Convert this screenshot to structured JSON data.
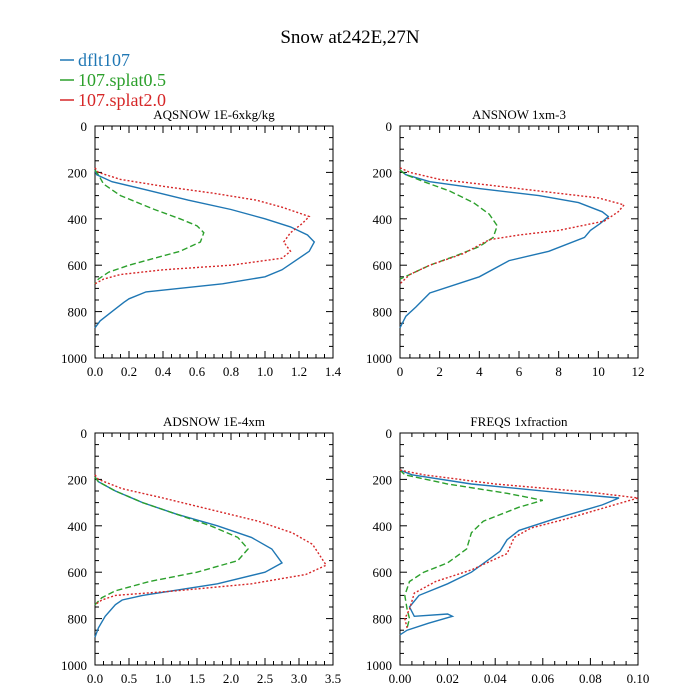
{
  "figure_title": "Snow at242E,27N",
  "legend": [
    {
      "label": "dflt107",
      "color": "#1f77b4"
    },
    {
      "label": "107.splat0.5",
      "color": "#2ca02c"
    },
    {
      "label": "107.splat2.0",
      "color": "#d62728"
    }
  ],
  "chart_data": [
    {
      "type": "line",
      "title": "AQSNOW  1E-6xkg/kg",
      "xlim": [
        0,
        1.4
      ],
      "ylim": [
        1000,
        0
      ],
      "xticks": [
        "0.0",
        "0.2",
        "0.4",
        "0.6",
        "0.8",
        "1.0",
        "1.2",
        "1.4"
      ],
      "xtick_values": [
        0,
        0.2,
        0.4,
        0.6,
        0.8,
        1.0,
        1.2,
        1.4
      ],
      "yticks": [
        "0",
        "200",
        "400",
        "600",
        "800",
        "1000"
      ],
      "ytick_values": [
        0,
        200,
        400,
        600,
        800,
        1000
      ],
      "series": [
        {
          "name": "dflt107",
          "style": "solid",
          "x": [
            0,
            0.01,
            0.1,
            0.3,
            0.55,
            0.8,
            1.0,
            1.15,
            1.25,
            1.29,
            1.26,
            1.18,
            1.1,
            1.0,
            0.75,
            0.3,
            0.2,
            0.17,
            0.1,
            0.03,
            0
          ],
          "y": [
            190,
            210,
            240,
            275,
            320,
            360,
            400,
            435,
            470,
            500,
            540,
            580,
            620,
            650,
            680,
            715,
            745,
            760,
            800,
            840,
            870
          ]
        },
        {
          "name": "107.splat0.5",
          "style": "dashed",
          "x": [
            0,
            0.02,
            0.05,
            0.15,
            0.35,
            0.5,
            0.6,
            0.64,
            0.62,
            0.5,
            0.35,
            0.2,
            0.08,
            0.02,
            0
          ],
          "y": [
            190,
            210,
            250,
            300,
            360,
            400,
            430,
            460,
            500,
            540,
            570,
            600,
            630,
            660,
            680
          ]
        },
        {
          "name": "107.splat2.0",
          "style": "dotted",
          "x": [
            0,
            0.02,
            0.15,
            0.4,
            0.7,
            0.95,
            1.1,
            1.2,
            1.26,
            1.22,
            1.15,
            1.11,
            1.15,
            1.1,
            0.8,
            0.4,
            0.15,
            0.05,
            0
          ],
          "y": [
            180,
            200,
            230,
            260,
            290,
            320,
            350,
            375,
            390,
            420,
            460,
            500,
            540,
            570,
            600,
            620,
            640,
            660,
            680
          ]
        }
      ]
    },
    {
      "type": "line",
      "title": "ANSNOW  1xm-3",
      "xlim": [
        0,
        12
      ],
      "ylim": [
        1000,
        0
      ],
      "xticks": [
        "0",
        "2",
        "4",
        "6",
        "8",
        "10",
        "12"
      ],
      "xtick_values": [
        0,
        2,
        4,
        6,
        8,
        10,
        12
      ],
      "yticks": [
        "0",
        "200",
        "400",
        "600",
        "800",
        "1000"
      ],
      "ytick_values": [
        0,
        200,
        400,
        600,
        800,
        1000
      ],
      "series": [
        {
          "name": "dflt107",
          "style": "solid",
          "x": [
            0,
            0.3,
            1.5,
            4,
            7,
            9,
            10.2,
            10.5,
            10.1,
            9.6,
            9.3,
            7.5,
            5.5,
            4.0,
            1.5,
            0.8,
            0.3,
            0
          ],
          "y": [
            190,
            210,
            240,
            270,
            300,
            330,
            370,
            390,
            420,
            450,
            480,
            540,
            580,
            650,
            720,
            780,
            820,
            870
          ]
        },
        {
          "name": "107.splat0.5",
          "style": "dashed",
          "x": [
            0,
            0.3,
            1.2,
            2.5,
            3.7,
            4.5,
            4.9,
            4.7,
            4.0,
            2.8,
            1.5,
            0.5,
            0
          ],
          "y": [
            190,
            210,
            240,
            280,
            330,
            380,
            430,
            480,
            520,
            560,
            600,
            640,
            660
          ]
        },
        {
          "name": "107.splat2.0",
          "style": "dotted",
          "x": [
            0,
            0.5,
            2,
            5,
            8,
            10,
            11.3,
            11,
            10.3,
            8,
            6,
            4.5,
            3.2,
            1.5,
            0.5,
            0
          ],
          "y": [
            180,
            200,
            230,
            260,
            290,
            310,
            340,
            370,
            410,
            450,
            470,
            490,
            550,
            600,
            640,
            680
          ]
        }
      ]
    },
    {
      "type": "line",
      "title": "ADSNOW  1E-4xm",
      "xlim": [
        0,
        3.5
      ],
      "ylim": [
        1000,
        0
      ],
      "xticks": [
        "0.0",
        "0.5",
        "1.0",
        "1.5",
        "2.0",
        "2.5",
        "3.0",
        "3.5"
      ],
      "xtick_values": [
        0,
        0.5,
        1.0,
        1.5,
        2.0,
        2.5,
        3.0,
        3.5
      ],
      "yticks": [
        "0",
        "200",
        "400",
        "600",
        "800",
        "1000"
      ],
      "ytick_values": [
        0,
        200,
        400,
        600,
        800,
        1000
      ],
      "series": [
        {
          "name": "dflt107",
          "style": "solid",
          "x": [
            0,
            0.05,
            0.3,
            0.7,
            1.2,
            1.8,
            2.3,
            2.6,
            2.75,
            2.5,
            1.8,
            0.7,
            0.4,
            0.3,
            0.15,
            0.05,
            0
          ],
          "y": [
            190,
            210,
            250,
            300,
            350,
            400,
            450,
            500,
            560,
            600,
            650,
            700,
            720,
            740,
            790,
            840,
            880
          ]
        },
        {
          "name": "107.splat0.5",
          "style": "dashed",
          "x": [
            0,
            0.05,
            0.3,
            0.7,
            1.2,
            1.7,
            2.1,
            2.25,
            2.1,
            1.5,
            0.8,
            0.3,
            0.1,
            0
          ],
          "y": [
            190,
            210,
            250,
            300,
            350,
            400,
            450,
            500,
            550,
            600,
            640,
            680,
            710,
            740
          ]
        },
        {
          "name": "107.splat2.0",
          "style": "dotted",
          "x": [
            0,
            0.05,
            0.4,
            1.0,
            1.7,
            2.4,
            2.9,
            3.2,
            3.4,
            3.1,
            2.3,
            1.2,
            0.3,
            0.1,
            0
          ],
          "y": [
            180,
            200,
            240,
            280,
            330,
            380,
            430,
            480,
            570,
            610,
            650,
            680,
            700,
            720,
            740
          ]
        }
      ]
    },
    {
      "type": "line",
      "title": "FREQS  1xfraction",
      "xlim": [
        0,
        0.1
      ],
      "ylim": [
        1000,
        0
      ],
      "xticks": [
        "0.00",
        "0.02",
        "0.04",
        "0.06",
        "0.08",
        "0.10"
      ],
      "xtick_values": [
        0,
        0.02,
        0.04,
        0.06,
        0.08,
        0.1
      ],
      "yticks": [
        "0",
        "200",
        "400",
        "600",
        "800",
        "1000"
      ],
      "ytick_values": [
        0,
        200,
        400,
        600,
        800,
        1000
      ],
      "series": [
        {
          "name": "dflt107",
          "style": "solid",
          "x": [
            0,
            0.005,
            0.03,
            0.07,
            0.092,
            0.085,
            0.065,
            0.05,
            0.045,
            0.042,
            0.03,
            0.02,
            0.008,
            0.004,
            0.006,
            0.02,
            0.022,
            0.012,
            0.003,
            0
          ],
          "y": [
            160,
            180,
            220,
            260,
            280,
            310,
            370,
            420,
            460,
            510,
            600,
            650,
            700,
            750,
            790,
            780,
            790,
            820,
            850,
            870
          ]
        },
        {
          "name": "107.splat0.5",
          "style": "dashed",
          "x": [
            0,
            0.002,
            0.02,
            0.045,
            0.06,
            0.05,
            0.035,
            0.03,
            0.028,
            0.02,
            0.01,
            0.004,
            0.002,
            0.003,
            0.004,
            0.003
          ],
          "y": [
            160,
            180,
            220,
            260,
            290,
            320,
            380,
            430,
            500,
            560,
            600,
            640,
            700,
            760,
            800,
            840
          ]
        },
        {
          "name": "107.splat2.0",
          "style": "dotted",
          "x": [
            0,
            0.01,
            0.04,
            0.08,
            0.1,
            0.09,
            0.07,
            0.055,
            0.048,
            0.045,
            0.03,
            0.015,
            0.006,
            0.004,
            0.002,
            0.003
          ],
          "y": [
            160,
            180,
            220,
            255,
            280,
            310,
            370,
            410,
            450,
            520,
            590,
            640,
            690,
            760,
            800,
            840
          ]
        }
      ]
    }
  ]
}
